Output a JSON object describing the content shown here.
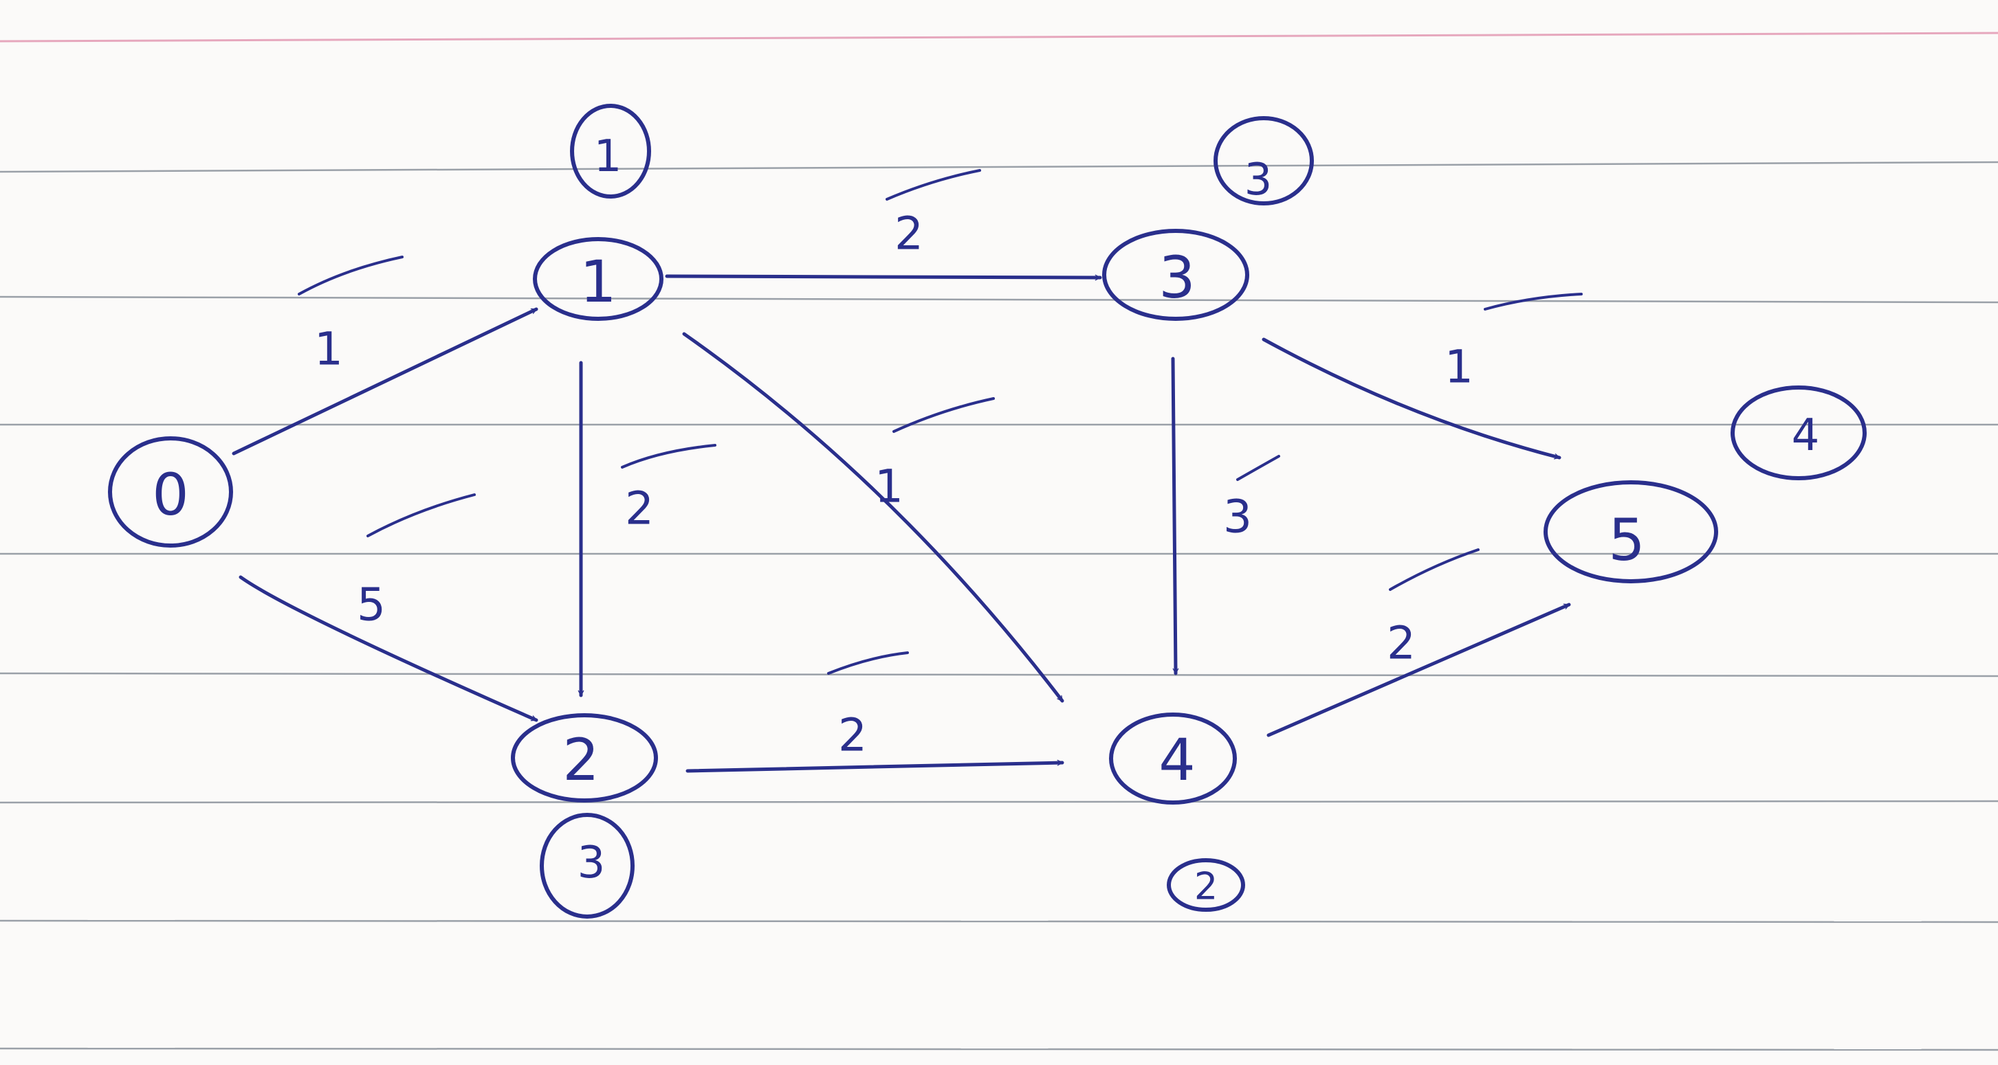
{
  "colors": {
    "ink": "#2a2f8c",
    "paper": "#fbfaf9",
    "rule": "#9aa0a8",
    "margin_line": "#e6a7bd"
  },
  "nodes": [
    {
      "id": "0",
      "label": "0"
    },
    {
      "id": "1",
      "label": "1",
      "distance": "1"
    },
    {
      "id": "2",
      "label": "2",
      "distance": "3"
    },
    {
      "id": "3",
      "label": "3",
      "distance": "3"
    },
    {
      "id": "4",
      "label": "4",
      "distance": "2"
    },
    {
      "id": "5",
      "label": "5",
      "distance": "4"
    }
  ],
  "edges": [
    {
      "from": "0",
      "to": "1",
      "weight": "1"
    },
    {
      "from": "0",
      "to": "2",
      "weight": "5"
    },
    {
      "from": "1",
      "to": "3",
      "weight": "2"
    },
    {
      "from": "1",
      "to": "2",
      "weight": "2"
    },
    {
      "from": "1",
      "to": "4",
      "weight": "1"
    },
    {
      "from": "2",
      "to": "4",
      "weight": "2"
    },
    {
      "from": "3",
      "to": "4",
      "weight": "3"
    },
    {
      "from": "3",
      "to": "5",
      "weight": "1"
    },
    {
      "from": "4",
      "to": "5",
      "weight": "2"
    }
  ],
  "edge_checked": "check-icon"
}
